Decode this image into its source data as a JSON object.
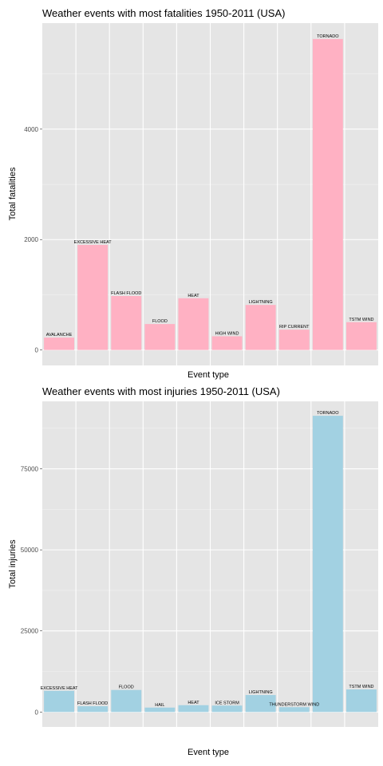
{
  "chart_data": [
    {
      "type": "bar",
      "title": "Weather events with most fatalities 1950-2011 (USA)",
      "xlabel": "Event type",
      "ylabel": "Total fatalities",
      "categories": [
        "AVALANCHE",
        "EXCESSIVE HEAT",
        "FLASH FLOOD",
        "FLOOD",
        "HEAT",
        "HIGH WIND",
        "LIGHTNING",
        "RIP CURRENT",
        "TORNADO",
        "TSTM WIND"
      ],
      "values": [
        224,
        1903,
        978,
        470,
        937,
        248,
        816,
        368,
        5633,
        504
      ],
      "yticks": [
        0,
        2000,
        4000
      ],
      "ylim": [
        -280,
        5920
      ],
      "bar_color": "#ffb1c3",
      "panel_color": "#e5e5e5",
      "grid": true
    },
    {
      "type": "bar",
      "title": "Weather events with most injuries 1950-2011 (USA)",
      "xlabel": "Event type",
      "ylabel": "Total injuries",
      "categories": [
        "EXCESSIVE HEAT",
        "FLASH FLOOD",
        "FLOOD",
        "HAIL",
        "HEAT",
        "ICE STORM",
        "LIGHTNING",
        "THUNDERSTORM WIND",
        "TORNADO",
        "TSTM WIND"
      ],
      "values": [
        6525,
        1777,
        6789,
        1361,
        2100,
        1975,
        5230,
        1488,
        91346,
        6957
      ],
      "yticks": [
        0,
        25000,
        50000,
        75000
      ],
      "ylim": [
        -4600,
        95800
      ],
      "bar_color": "#a2d1e2",
      "panel_color": "#e5e5e5",
      "grid": true
    }
  ]
}
